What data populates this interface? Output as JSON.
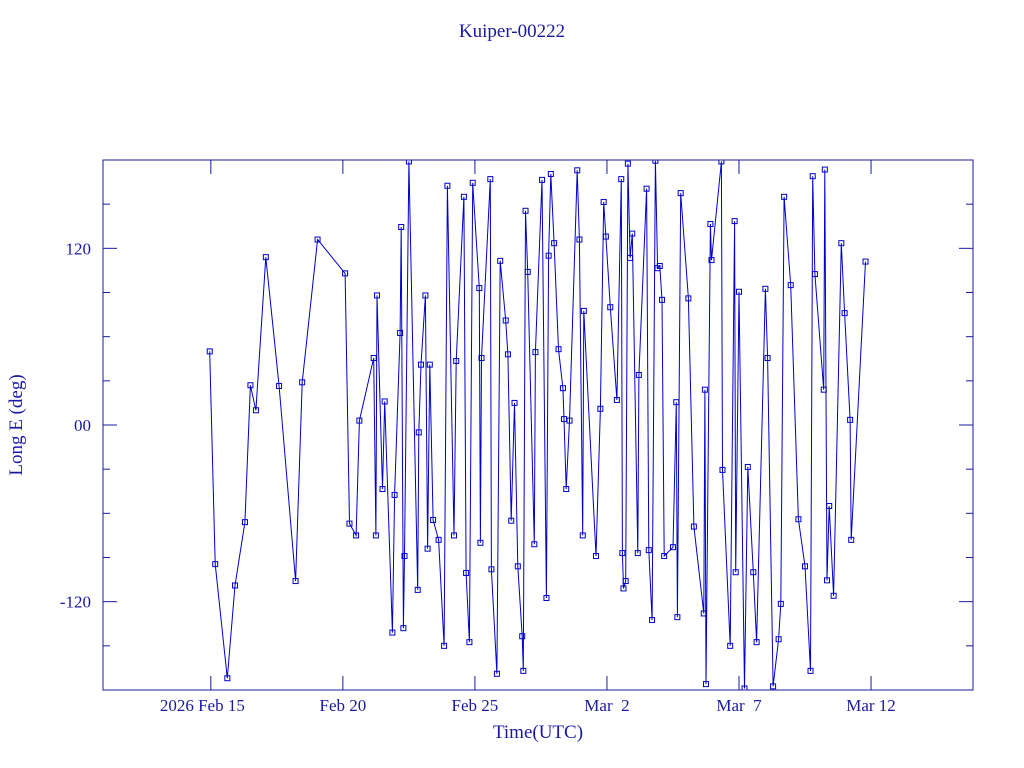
{
  "chart_data": {
    "type": "line",
    "title": "Kuiper-00222",
    "x_label": "Time(UTC)",
    "y_label": "Long E (deg)",
    "color": "#0000cc",
    "xlim": [
      "2026-02-10T22:00",
      "2026-03-15T20:40"
    ],
    "xticks": [
      {
        "value": "2026-02-15T00:00",
        "label": "2026 Feb 15"
      },
      {
        "value": "2026-02-20T00:00",
        "label": "Feb 20"
      },
      {
        "value": "2026-02-25T00:00",
        "label": "Feb 25"
      },
      {
        "value": "2026-03-02T00:00",
        "label": "Mar  2"
      },
      {
        "value": "2026-03-07T00:00",
        "label": "Mar  7"
      },
      {
        "value": "2026-03-12T00:00",
        "label": "Mar 12"
      }
    ],
    "ylim": [
      -180,
      180
    ],
    "yticks": [
      -120,
      {
        "value": 0,
        "label": "00"
      },
      120
    ],
    "yminorticks": [
      -150,
      -90,
      -60,
      -30,
      30,
      60,
      90,
      150
    ],
    "x": [
      "2026-02-14T23:00",
      "2026-02-15T04:00",
      "2026-02-15T15:00",
      "2026-02-15T22:00",
      "2026-02-16T07:00",
      "2026-02-16T12:00",
      "2026-02-16T17:00",
      "2026-02-17T02:00",
      "2026-02-17T14:00",
      "2026-02-18T05:00",
      "2026-02-18T11:00",
      "2026-02-19T01:00",
      "2026-02-20T02:00",
      "2026-02-20T06:00",
      "2026-02-20T12:00",
      "2026-02-20T15:00",
      "2026-02-21T04:00",
      "2026-02-21T06:00",
      "2026-02-21T07:00",
      "2026-02-21T12:00",
      "2026-02-21T14:00",
      "2026-02-21T21:00",
      "2026-02-21T23:00",
      "2026-02-22T04:00",
      "2026-02-22T05:00",
      "2026-02-22T07:00",
      "2026-02-22T08:00",
      "2026-02-22T12:00",
      "2026-02-22T20:00",
      "2026-02-22T21:00",
      "2026-02-22T23:00",
      "2026-02-23T03:00",
      "2026-02-23T05:00",
      "2026-02-23T07:00",
      "2026-02-23T10:00",
      "2026-02-23T15:00",
      "2026-02-23T20:00",
      "2026-02-23T23:00",
      "2026-02-24T05:00",
      "2026-02-24T07:00",
      "2026-02-24T14:00",
      "2026-02-24T16:00",
      "2026-02-24T19:00",
      "2026-02-24T22:00",
      "2026-02-25T04:00",
      "2026-02-25T05:00",
      "2026-02-25T06:00",
      "2026-02-25T14:00",
      "2026-02-25T15:00",
      "2026-02-25T20:00",
      "2026-02-25T23:00",
      "2026-02-26T04:00",
      "2026-02-26T06:00",
      "2026-02-26T09:00",
      "2026-02-26T12:00",
      "2026-02-26T15:00",
      "2026-02-26T19:00",
      "2026-02-26T20:00",
      "2026-02-26T22:00",
      "2026-02-27T00:00",
      "2026-02-27T06:00",
      "2026-02-27T07:00",
      "2026-02-27T13:00",
      "2026-02-27T17:00",
      "2026-02-27T19:00",
      "2026-02-27T21:00",
      "2026-02-28T00:00",
      "2026-02-28T04:00",
      "2026-02-28T08:00",
      "2026-02-28T09:00",
      "2026-02-28T11:00",
      "2026-02-28T14:00",
      "2026-02-28T21:00",
      "2026-02-28T23:00",
      "2026-03-01T02:00",
      "2026-03-01T03:00",
      "2026-03-01T14:00",
      "2026-03-01T18:00",
      "2026-03-01T21:00",
      "2026-03-01T23:00",
      "2026-03-02T03:00",
      "2026-03-02T09:00",
      "2026-03-02T13:00",
      "2026-03-02T14:00",
      "2026-03-02T15:00",
      "2026-03-02T17:00",
      "2026-03-02T19:00",
      "2026-03-02T21:00",
      "2026-03-02T23:00",
      "2026-03-03T04:00",
      "2026-03-03T05:00",
      "2026-03-03T12:00",
      "2026-03-03T14:00",
      "2026-03-03T17:00",
      "2026-03-03T20:00",
      "2026-03-03T22:00",
      "2026-03-04T00:00",
      "2026-03-04T02:00",
      "2026-03-04T04:00",
      "2026-03-04T12:00",
      "2026-03-04T15:00",
      "2026-03-04T16:00",
      "2026-03-04T19:00",
      "2026-03-05T02:00",
      "2026-03-05T07:00",
      "2026-03-05T16:00",
      "2026-03-05T17:00",
      "2026-03-05T18:00",
      "2026-03-05T22:00",
      "2026-03-05T23:00",
      "2026-03-06T08:00",
      "2026-03-06T09:00",
      "2026-03-06T16:00",
      "2026-03-06T20:00",
      "2026-03-06T21:00",
      "2026-03-07T00:00",
      "2026-03-07T05:00",
      "2026-03-07T08:00",
      "2026-03-07T13:00",
      "2026-03-07T16:00",
      "2026-03-08T00:00",
      "2026-03-08T02:00",
      "2026-03-08T07:00",
      "2026-03-08T12:00",
      "2026-03-08T14:00",
      "2026-03-08T17:00",
      "2026-03-08T23:00",
      "2026-03-09T06:00",
      "2026-03-09T12:00",
      "2026-03-09T17:00",
      "2026-03-09T19:00",
      "2026-03-09T21:00",
      "2026-03-10T05:00",
      "2026-03-10T06:00",
      "2026-03-10T08:00",
      "2026-03-10T10:00",
      "2026-03-10T14:00",
      "2026-03-10T21:00",
      "2026-03-11T00:00",
      "2026-03-11T05:00",
      "2026-03-11T06:00",
      "2026-03-11T19:00"
    ],
    "values": [
      50,
      -94.5,
      -172,
      -109,
      -66,
      27,
      10,
      114,
      26.5,
      -106,
      29,
      126,
      103,
      -67,
      -75,
      3,
      45.5,
      -75,
      88,
      -43.5,
      16,
      -141,
      -47.5,
      62.5,
      134.5,
      -138,
      -89,
      179,
      -112,
      -5,
      41,
      88,
      -84,
      41,
      -64.5,
      -78,
      -150,
      162.5,
      -75,
      43.5,
      155,
      -100.5,
      -147.5,
      164.5,
      93,
      -80,
      45.5,
      167,
      -98,
      -169,
      111.5,
      71,
      48,
      -65,
      15,
      -96,
      -143.5,
      -167,
      145.5,
      104,
      -81,
      49.5,
      166.5,
      -117.5,
      115,
      170.5,
      123.5,
      51.5,
      25,
      4,
      -43.5,
      3,
      173,
      126,
      -75,
      77.5,
      -89,
      11,
      151.5,
      128,
      80,
      17,
      167,
      -87,
      -111,
      -106,
      177.5,
      113.5,
      130,
      -87,
      34,
      160.5,
      -85,
      -132.5,
      179.5,
      106.5,
      108,
      85,
      -89,
      -83,
      15.5,
      -130.5,
      157.5,
      86,
      -69,
      -128,
      24,
      -176,
      136.5,
      112,
      179,
      -30.5,
      -150,
      138.5,
      -100,
      90.5,
      -179,
      -28.5,
      -100,
      -147.5,
      92.5,
      45.5,
      -177.5,
      -145.5,
      -121.5,
      155,
      95,
      -64,
      -96,
      -167,
      169,
      102.5,
      24,
      173.5,
      -105.5,
      -55,
      -116,
      123.5,
      76,
      3.5,
      -78,
      111
    ]
  }
}
